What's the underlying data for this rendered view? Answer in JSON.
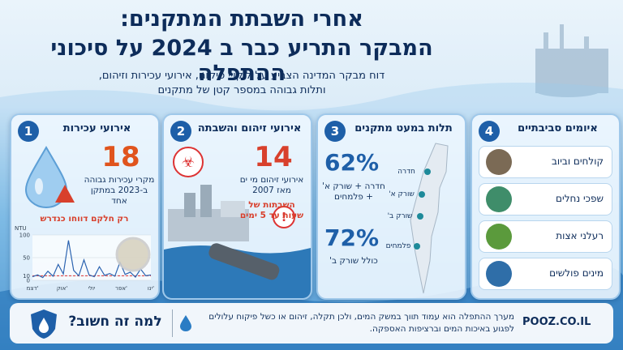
{
  "header": {
    "title_line1": "אחרי השבתת המתקנים:",
    "title_line2": "המבקר התריע כבר ב 2024 על סיכוני ההתפלה",
    "subtitle_line1": "דוח מבקר המדינה הצביע על ליקויי פיקוח, אירועי עכירות וזיהום,",
    "subtitle_line2": "ותלות גבוהה במספר קטן של מתקנים"
  },
  "panels": [
    {
      "number": "1",
      "title": "אירועי עכירות",
      "figure": "18",
      "text": "מקרי עכירות גבוהה ב-2023 במתקן אחד",
      "note": "רק חלקם דווחו כנדרש"
    },
    {
      "number": "2",
      "title": "אירועי זיהום והשבתה",
      "figure": "14",
      "text": "אירועי זיהום מי ים מאז 2007",
      "note": "השבתות של שעות עד 5 ימים"
    },
    {
      "number": "3",
      "title": "תלות במעט מתקנים",
      "figure1": "62%",
      "text1": "חדרה + שורק א' + פלמחים",
      "figure2": "72%",
      "text2": "כולל שורק ב'",
      "map_labels": [
        "חדרה",
        "שורק א'",
        "שורק ב'",
        "פלמחים"
      ]
    },
    {
      "number": "4",
      "title": "איומים סביבתיים",
      "items": [
        "קולחים וביוב",
        "שפכי נחלים",
        "רעלני אצות",
        "מינים פולשים"
      ]
    }
  ],
  "turbidity_chart": {
    "type": "line",
    "unit": "NTU",
    "categories": [
      "ינו'",
      "אפר'",
      "יולי",
      "אוק'",
      "דצמ'"
    ],
    "values": [
      8,
      12,
      6,
      20,
      9,
      35,
      14,
      88,
      22,
      10,
      45,
      12,
      8,
      30,
      11,
      15,
      9,
      40,
      13,
      18,
      7,
      25,
      10,
      12
    ],
    "threshold": 10,
    "color": "#2b63b0",
    "ylim": [
      0,
      100
    ],
    "yticks": [
      0,
      10,
      50,
      100
    ]
  },
  "footer": {
    "heading": "למה זה חשוב?",
    "text": "מערך ההתפלה הוא עמוד תווך במשק המים, ולכן תקלה, זיהום או כשל פיקוח עלולים לפגוע באיכות המים וברציפות האספקה.",
    "brand": "POOZ.CO.IL"
  }
}
